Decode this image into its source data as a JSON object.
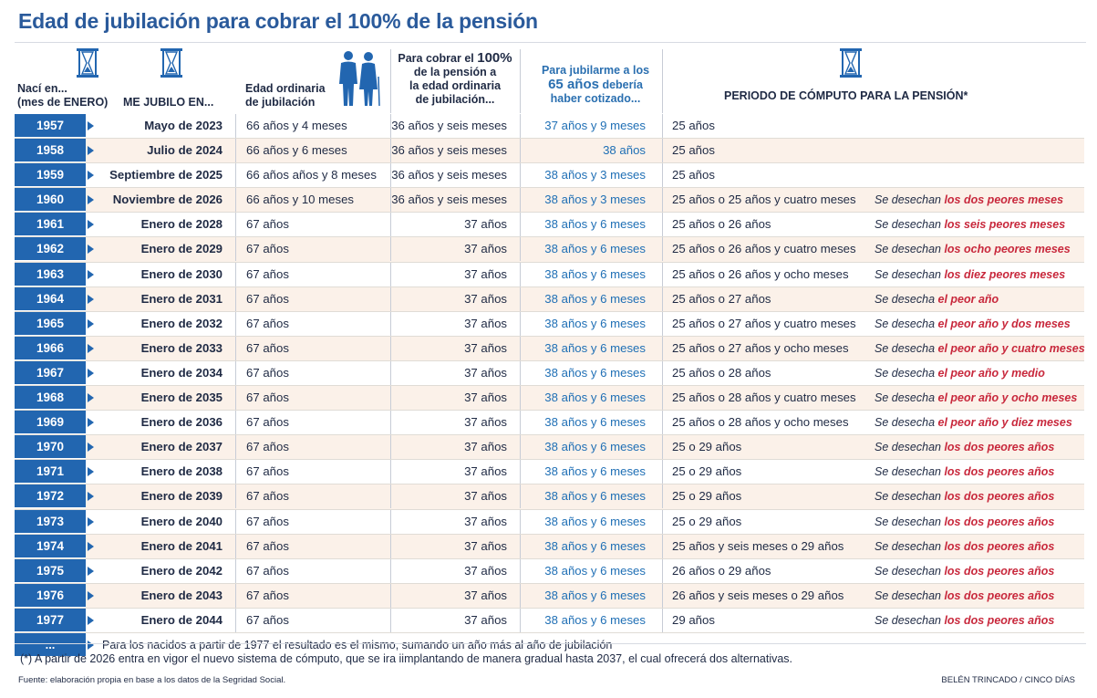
{
  "title": "Edad de jubilación para cobrar el 100% de la pensión",
  "header": {
    "naci": "Nací en...",
    "naci_sub": "(mes de ENERO)",
    "jubilo": "ME JUBILO EN...",
    "edad_ordinaria": "Edad ordinaria",
    "edad_ordinaria_2": "de jubilación",
    "cobrar_1": "Para cobrar el",
    "cobrar_big": "100%",
    "cobrar_2": "de la pensión a",
    "cobrar_3": "la edad ordinaria",
    "cobrar_4": "de jubilación...",
    "j65_1": "Para jubilarme a los",
    "j65_big": "65 años",
    "j65_big_suffix": " debería",
    "j65_3": "haber cotizado...",
    "periodo": "PERIODO DE CÓMPUTO PARA LA PENSIÓN*"
  },
  "icons": {
    "hourglass": "hourglass-icon",
    "couple": "elderly-couple-icon",
    "arrow": "triangle-right-icon"
  },
  "colors": {
    "title": "#2a5a9b",
    "year_bg": "#2266b0",
    "highlight_red": "#c8283c",
    "blue_text": "#1f6fb5",
    "row_alt": "#fbf1e9"
  },
  "rows": [
    {
      "year": "1957",
      "jub": "Mayo de 2023",
      "edad": "66 años y 4 meses",
      "cot": "36 años y seis meses",
      "a65": "37 años y 9 meses",
      "per": "25 años",
      "nota_pre": "",
      "nota_hl": ""
    },
    {
      "year": "1958",
      "jub": "Julio de 2024",
      "edad": "66 años y 6 meses",
      "cot": "36 años y seis meses",
      "a65": "38 años",
      "per": "25 años",
      "nota_pre": "",
      "nota_hl": ""
    },
    {
      "year": "1959",
      "jub": "Septiembre de 2025",
      "edad": "66 años años y 8 meses",
      "cot": "36 años y seis meses",
      "a65": "38 años y 3 meses",
      "per": "25 años",
      "nota_pre": "",
      "nota_hl": ""
    },
    {
      "year": "1960",
      "jub": "Noviembre de 2026",
      "edad": "66 años y 10 meses",
      "cot": "36 años y seis meses",
      "a65": "38 años y 3 meses",
      "per": "25 años o 25 años y cuatro meses",
      "nota_pre": "Se desechan ",
      "nota_hl": "los dos peores meses"
    },
    {
      "year": "1961",
      "jub": "Enero de 2028",
      "edad": "67 años",
      "cot": "37 años",
      "a65": "38 años y 6 meses",
      "per": "25 años o 26 años",
      "nota_pre": "Se desechan ",
      "nota_hl": "los seis peores meses"
    },
    {
      "year": "1962",
      "jub": "Enero de 2029",
      "edad": "67 años",
      "cot": "37 años",
      "a65": "38 años y 6 meses",
      "per": "25 años o 26 años y cuatro meses",
      "nota_pre": "Se desechan ",
      "nota_hl": "los ocho peores meses"
    },
    {
      "year": "1963",
      "jub": "Enero de 2030",
      "edad": "67 años",
      "cot": "37 años",
      "a65": "38 años y 6 meses",
      "per": "25 años o 26 años y ocho meses",
      "nota_pre": "Se desechan ",
      "nota_hl": "los diez peores meses"
    },
    {
      "year": "1964",
      "jub": "Enero de 2031",
      "edad": "67 años",
      "cot": "37 años",
      "a65": "38 años y 6 meses",
      "per": "25 años o 27 años",
      "nota_pre": "Se desecha ",
      "nota_hl": "el peor año"
    },
    {
      "year": "1965",
      "jub": "Enero de 2032",
      "edad": "67 años",
      "cot": "37 años",
      "a65": "38 años y 6 meses",
      "per": "25 años o 27 años y cuatro meses",
      "nota_pre": "Se desecha ",
      "nota_hl": "el peor año y dos meses"
    },
    {
      "year": "1966",
      "jub": "Enero de 2033",
      "edad": "67 años",
      "cot": "37 años",
      "a65": "38 años y 6 meses",
      "per": "25 años o 27 años y ocho meses",
      "nota_pre": "Se desecha ",
      "nota_hl": "el peor año y cuatro meses"
    },
    {
      "year": "1967",
      "jub": "Enero de 2034",
      "edad": "67 años",
      "cot": "37 años",
      "a65": "38 años y 6 meses",
      "per": "25 años o 28 años",
      "nota_pre": "Se desecha ",
      "nota_hl": "el peor año y medio"
    },
    {
      "year": "1968",
      "jub": "Enero de 2035",
      "edad": "67 años",
      "cot": "37 años",
      "a65": "38 años y 6 meses",
      "per": "25 años o 28 años y cuatro meses",
      "nota_pre": "Se desecha ",
      "nota_hl": "el peor año y ocho meses"
    },
    {
      "year": "1969",
      "jub": "Enero de 2036",
      "edad": "67 años",
      "cot": "37 años",
      "a65": "38 años y 6 meses",
      "per": "25 años o 28 años y ocho meses",
      "nota_pre": "Se desecha ",
      "nota_hl": "el peor año y diez meses"
    },
    {
      "year": "1970",
      "jub": "Enero de 2037",
      "edad": "67 años",
      "cot": "37 años",
      "a65": "38 años y 6 meses",
      "per": "25 o 29 años",
      "nota_pre": "Se desechan ",
      "nota_hl": "los dos peores años"
    },
    {
      "year": "1971",
      "jub": "Enero de 2038",
      "edad": "67 años",
      "cot": "37 años",
      "a65": "38 años y 6 meses",
      "per": "25 o 29 años",
      "nota_pre": "Se desechan ",
      "nota_hl": "los dos peores años"
    },
    {
      "year": "1972",
      "jub": "Enero de 2039",
      "edad": "67 años",
      "cot": "37 años",
      "a65": "38 años y 6 meses",
      "per": "25 o 29 años",
      "nota_pre": "Se desechan ",
      "nota_hl": "los dos peores años"
    },
    {
      "year": "1973",
      "jub": "Enero de 2040",
      "edad": "67 años",
      "cot": "37 años",
      "a65": "38 años y 6 meses",
      "per": "25 o 29 años",
      "nota_pre": "Se desechan ",
      "nota_hl": "los dos peores años"
    },
    {
      "year": "1974",
      "jub": "Enero de 2041",
      "edad": "67 años",
      "cot": "37 años",
      "a65": "38 años y 6 meses",
      "per": "25 años y seis meses o 29 años",
      "nota_pre": "Se desechan ",
      "nota_hl": "los dos peores años"
    },
    {
      "year": "1975",
      "jub": "Enero de 2042",
      "edad": "67 años",
      "cot": "37 años",
      "a65": "38 años y 6 meses",
      "per": "26 años o 29 años",
      "nota_pre": "Se desechan ",
      "nota_hl": "los dos peores años"
    },
    {
      "year": "1976",
      "jub": "Enero de 2043",
      "edad": "67 años",
      "cot": "37 años",
      "a65": "38 años y 6 meses",
      "per": "26 años y seis meses o 29 años",
      "nota_pre": "Se desechan ",
      "nota_hl": "los dos peores años"
    },
    {
      "year": "1977",
      "jub": "Enero de 2044",
      "edad": "67 años",
      "cot": "37 años",
      "a65": "38 años y 6 meses",
      "per": "29 años",
      "nota_pre": "Se desechan ",
      "nota_hl": "los dos peores años"
    }
  ],
  "last_row": {
    "year": "...",
    "text": "Para los nacidos a partir de 1977 el resultado es el mismo, sumando un año más al año de jubilación"
  },
  "footnote": "(*) A partir de 2026 entra en vigor el nuevo sistema de cómputo, que se ira iimplantando de manera gradual hasta 2037, el cual ofrecerá dos alternativas.",
  "source": "Fuente: elaboración propia en base a los datos de la Segridad Social.",
  "credit": "BELÉN TRINCADO / CINCO DÍAS"
}
